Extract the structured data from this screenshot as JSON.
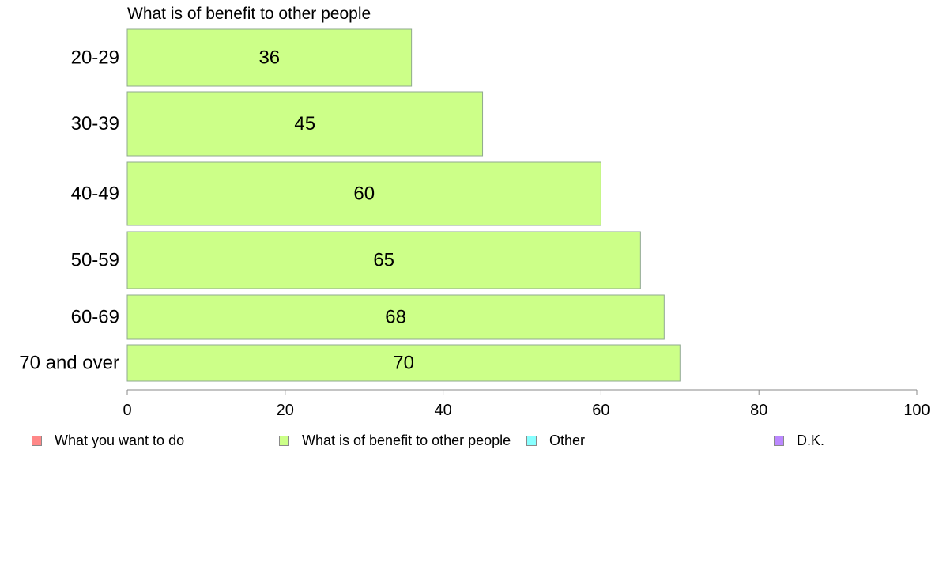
{
  "chart_data": {
    "type": "bar",
    "orientation": "horizontal",
    "title": "What is of benefit to other people",
    "categories": [
      "20-29",
      "30-39",
      "40-49",
      "50-59",
      "60-69",
      "70 and over"
    ],
    "values": [
      36,
      45,
      60,
      65,
      68,
      70
    ],
    "data_labels": [
      "36",
      "45",
      "60",
      "65",
      "68",
      "70"
    ],
    "xlim": [
      0,
      100
    ],
    "xticks": [
      0,
      20,
      40,
      60,
      80,
      100
    ],
    "xtick_labels": [
      "0",
      "20",
      "40",
      "60",
      "80",
      "100"
    ],
    "grid": false,
    "bar_color": "#ccff88",
    "bar_edge_color": "#8fa88f",
    "legend_position": "bottom",
    "legend": [
      {
        "label": "What you want to do",
        "color": "#ff8888"
      },
      {
        "label": "What is of benefit to other people",
        "color": "#ccff88"
      },
      {
        "label": "Other",
        "color": "#88ffff"
      },
      {
        "label": "D.K.",
        "color": "#bb88ff"
      }
    ]
  }
}
